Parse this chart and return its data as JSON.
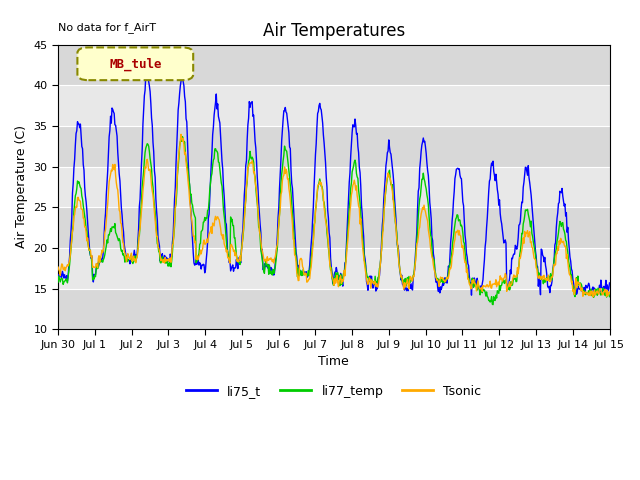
{
  "title": "Air Temperatures",
  "xlabel": "Time",
  "ylabel": "Air Temperature (C)",
  "ylim": [
    10,
    45
  ],
  "annotation_text": "No data for f_AirT",
  "legend_label": "MB_tule",
  "series_labels": [
    "li75_t",
    "li77_temp",
    "Tsonic"
  ],
  "series_colors": [
    "#0000ff",
    "#00cc00",
    "#ffaa00"
  ],
  "background_color": "#e8e8e8",
  "background_color2": "#d0d0d0",
  "grid_color": "#ffffff",
  "start_day": 0,
  "num_days": 16,
  "tick_labels": [
    "Jun 30",
    "Jul 1",
    "Jul 2",
    "Jul 3",
    "Jul 4",
    "Jul 5",
    "Jul 6",
    "Jul 7",
    "Jul 8",
    "Jul 9",
    "Jul 10",
    "Jul 11",
    "Jul 12",
    "Jul 13",
    "Jul 14",
    "Jul 15"
  ],
  "yticks": [
    10,
    15,
    20,
    25,
    30,
    35,
    40,
    45
  ],
  "li75_daily_max": [
    35.5,
    37.0,
    41.5,
    41.0,
    38.0,
    38.0,
    37.0,
    37.5,
    35.5,
    32.5,
    33.5,
    30.0,
    30.0,
    29.5,
    27.0,
    15.0
  ],
  "li75_daily_min": [
    16.5,
    18.5,
    19.0,
    18.5,
    17.5,
    18.0,
    17.0,
    17.0,
    16.0,
    15.5,
    15.0,
    16.0,
    15.0,
    20.0,
    15.0,
    15.0
  ],
  "li77_daily_max": [
    28.0,
    22.5,
    32.5,
    33.5,
    32.0,
    31.5,
    32.0,
    28.0,
    30.5,
    29.0,
    28.5,
    24.0,
    13.5,
    24.5,
    23.0,
    14.5
  ],
  "li77_daily_min": [
    16.0,
    18.5,
    18.5,
    18.0,
    23.5,
    18.0,
    17.0,
    16.5,
    16.0,
    16.0,
    16.0,
    16.0,
    15.0,
    16.0,
    16.0,
    14.5
  ],
  "tsonic_daily_max": [
    26.0,
    30.0,
    30.5,
    33.5,
    23.5,
    31.0,
    29.5,
    28.0,
    28.0,
    29.0,
    25.0,
    22.0,
    15.5,
    22.0,
    21.0,
    14.5
  ],
  "tsonic_daily_min": [
    17.5,
    19.0,
    18.5,
    18.5,
    20.5,
    18.5,
    18.5,
    16.0,
    16.0,
    15.5,
    16.0,
    16.0,
    15.0,
    16.5,
    16.0,
    14.5
  ]
}
